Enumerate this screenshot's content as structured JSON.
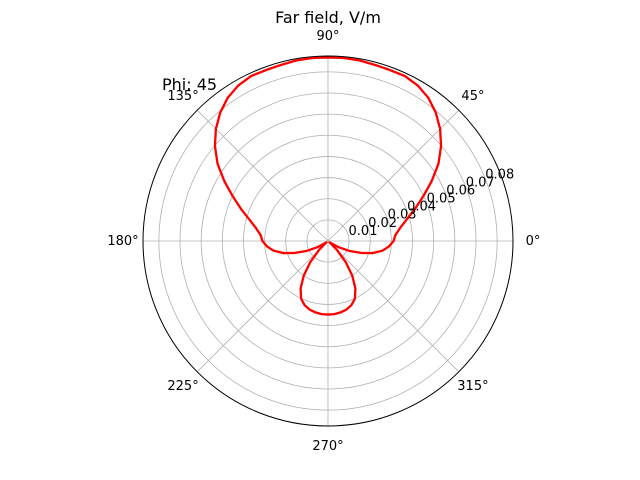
{
  "chart_data": {
    "type": "line",
    "projection": "polar",
    "title": "Far field, V/m",
    "annotation": "Phi: 45",
    "angle_ticks": [
      {
        "deg": 0,
        "label": "0°"
      },
      {
        "deg": 45,
        "label": "45°"
      },
      {
        "deg": 90,
        "label": "90°"
      },
      {
        "deg": 135,
        "label": "135°"
      },
      {
        "deg": 180,
        "label": "180°"
      },
      {
        "deg": 225,
        "label": "225°"
      },
      {
        "deg": 270,
        "label": "270°"
      },
      {
        "deg": 315,
        "label": "315°"
      }
    ],
    "radial_ticks": [
      0.01,
      0.02,
      0.03,
      0.04,
      0.05,
      0.06,
      0.07,
      0.08
    ],
    "radial_tick_labels": [
      "0.01",
      "0.02",
      "0.03",
      "0.04",
      "0.05",
      "0.06",
      "0.07",
      "0.08"
    ],
    "rlim": [
      0,
      0.0875
    ],
    "grid": true,
    "series": [
      {
        "color": "#ff0000",
        "theta_deg": [
          0,
          5,
          10,
          15,
          20,
          25,
          30,
          35,
          40,
          45,
          50,
          55,
          60,
          65,
          70,
          75,
          80,
          85,
          90,
          95,
          100,
          105,
          110,
          115,
          120,
          125,
          130,
          135,
          140,
          145,
          150,
          155,
          160,
          165,
          170,
          175,
          180,
          185,
          190,
          195,
          200,
          205,
          210,
          215,
          220,
          225,
          230,
          235,
          240,
          245,
          250,
          255,
          260,
          265,
          270,
          275,
          280,
          285,
          290,
          295,
          300,
          305,
          310,
          315,
          320,
          325,
          330,
          335,
          340,
          345,
          350,
          355
        ],
        "r": [
          0.031,
          0.032,
          0.0345,
          0.0383,
          0.0436,
          0.0496,
          0.0566,
          0.0638,
          0.0698,
          0.075,
          0.0793,
          0.0827,
          0.0849,
          0.0861,
          0.086,
          0.0862,
          0.0867,
          0.0869,
          0.0868,
          0.0869,
          0.0867,
          0.0862,
          0.086,
          0.0861,
          0.0849,
          0.0827,
          0.0793,
          0.075,
          0.0698,
          0.0638,
          0.0566,
          0.0496,
          0.0436,
          0.0383,
          0.0345,
          0.032,
          0.031,
          0.029,
          0.0262,
          0.022,
          0.0165,
          0.011,
          0.006,
          0.002,
          0.001,
          0.006,
          0.013,
          0.02,
          0.0259,
          0.0301,
          0.0323,
          0.0336,
          0.0343,
          0.0347,
          0.0348,
          0.0347,
          0.0343,
          0.0336,
          0.0323,
          0.0301,
          0.0259,
          0.02,
          0.013,
          0.006,
          0.001,
          0.002,
          0.006,
          0.011,
          0.0165,
          0.022,
          0.0262,
          0.029
        ]
      }
    ]
  }
}
